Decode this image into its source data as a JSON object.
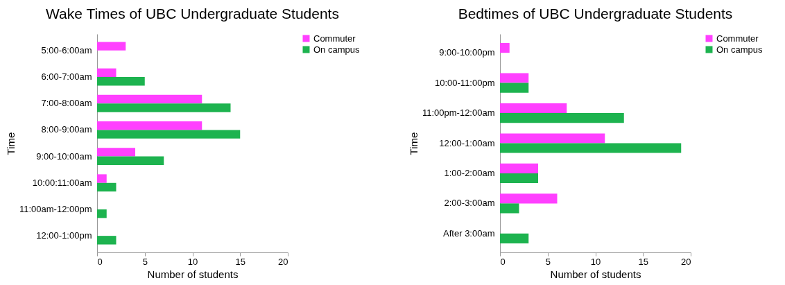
{
  "chart_data": [
    {
      "type": "bar",
      "orientation": "horizontal",
      "title": "Wake Times of UBC Undergraduate Students",
      "xlabel": "Number of students",
      "ylabel": "Time",
      "categories": [
        "5:00-6:00am",
        "6:00-7:00am",
        "7:00-8:00am",
        "8:00-9:00am",
        "9:00-10:00am",
        "10:00:11:00am",
        "11:00am-12:00pm",
        "12:00-1:00pm"
      ],
      "series": [
        {
          "name": "Commuter",
          "color": "#ff40ff",
          "values": [
            3,
            2,
            11,
            11,
            4,
            1,
            0,
            0
          ]
        },
        {
          "name": "On campus",
          "color": "#1db34f",
          "values": [
            0,
            5,
            14,
            15,
            7,
            2,
            1,
            2
          ]
        }
      ],
      "xlim": [
        0,
        20
      ],
      "xticks": [
        0,
        5,
        10,
        15,
        20
      ],
      "legend": "right"
    },
    {
      "type": "bar",
      "orientation": "horizontal",
      "title": "Bedtimes of UBC Undergraduate Students",
      "xlabel": "Number of students",
      "ylabel": "Time",
      "categories": [
        "9:00-10:00pm",
        "10:00-11:00pm",
        "11:00pm-12:00am",
        "12:00-1:00am",
        "1:00-2:00am",
        "2:00-3:00am",
        "After 3:00am"
      ],
      "series": [
        {
          "name": "Commuter",
          "color": "#ff40ff",
          "values": [
            1,
            3,
            7,
            11,
            4,
            6,
            0
          ]
        },
        {
          "name": "On campus",
          "color": "#1db34f",
          "values": [
            0,
            3,
            13,
            19,
            4,
            2,
            3
          ]
        }
      ],
      "xlim": [
        0,
        20
      ],
      "xticks": [
        0,
        5,
        10,
        15,
        20
      ],
      "legend": "right"
    }
  ]
}
